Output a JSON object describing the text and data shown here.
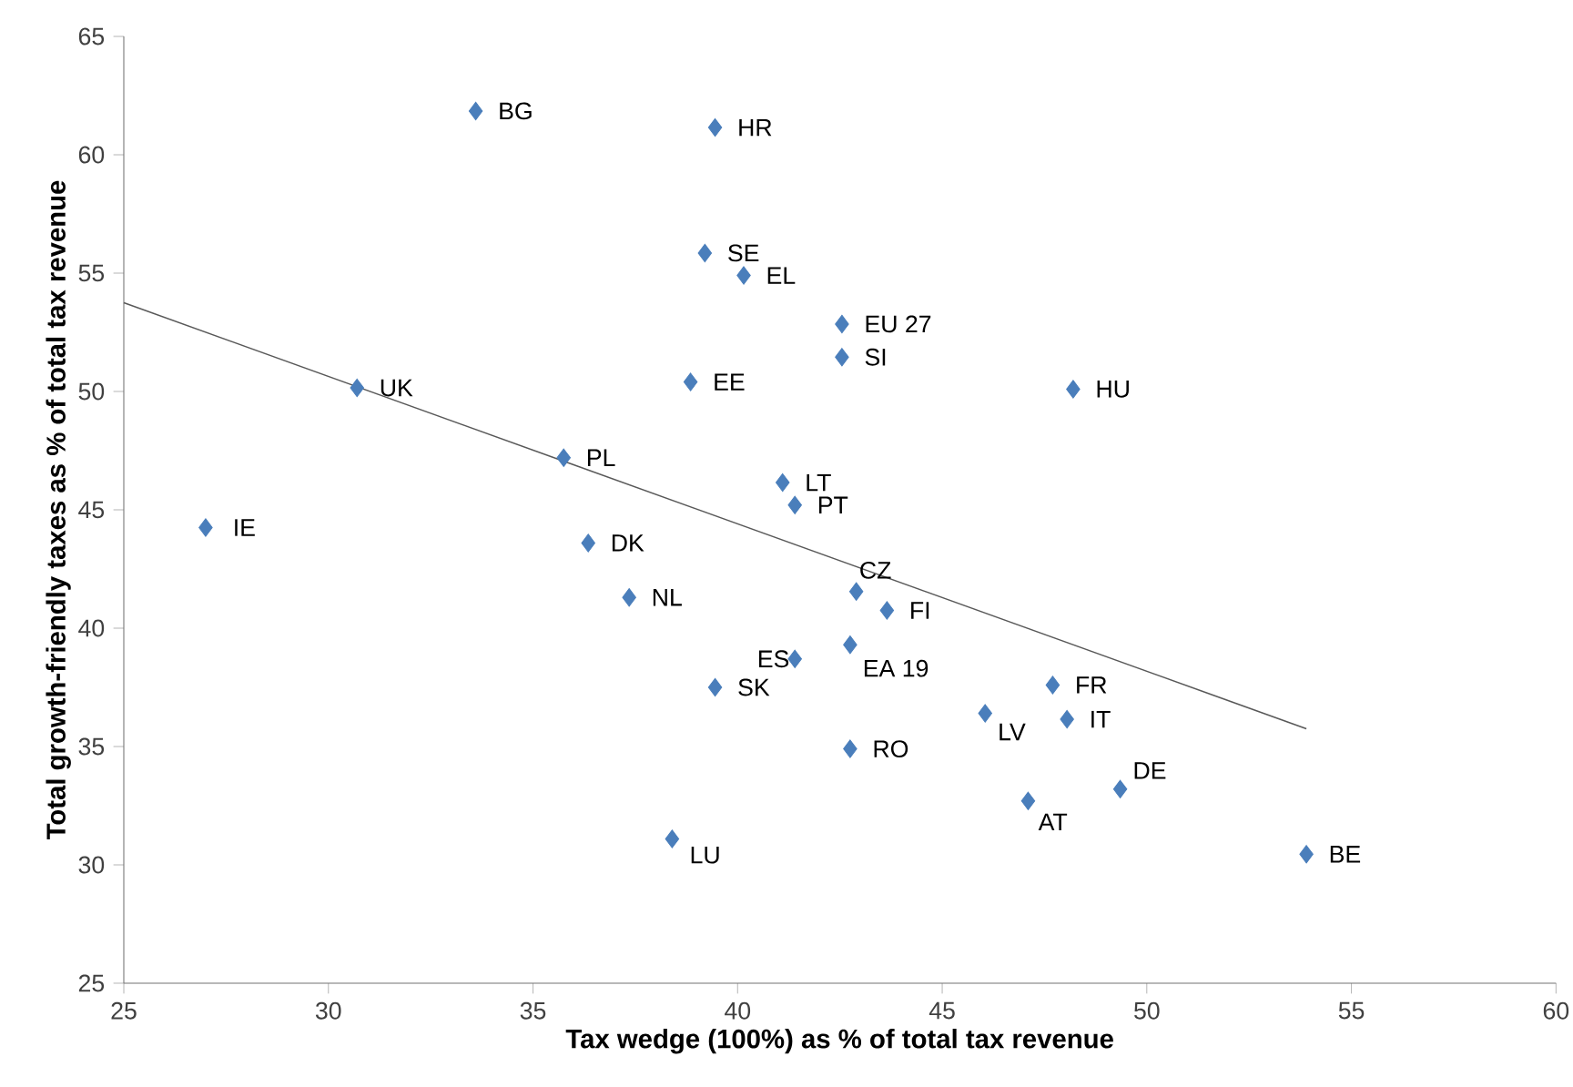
{
  "chart_data": {
    "type": "scatter",
    "xlabel": "Tax wedge (100%) as % of total tax revenue",
    "ylabel": "Total growth-friendly taxes as % of total tax revenue",
    "xlim": [
      25,
      60
    ],
    "ylim": [
      25,
      65
    ],
    "xticks": [
      25,
      30,
      35,
      40,
      45,
      50,
      55,
      60
    ],
    "yticks": [
      25,
      30,
      35,
      40,
      45,
      50,
      55,
      60,
      65
    ],
    "grid": false,
    "series": [
      {
        "marker": "diamond",
        "color": "#4a7ebb",
        "x": [
          33.6,
          39.45,
          39.2,
          40.15,
          42.55,
          42.55,
          48.2,
          30.7,
          38.85,
          35.75,
          41.1,
          41.4,
          27.0,
          36.35,
          42.9,
          37.35,
          43.65,
          42.75,
          41.4,
          39.45,
          47.7,
          46.05,
          48.05,
          42.75,
          49.35,
          47.1,
          38.4,
          53.9
        ],
        "values": [
          61.85,
          61.15,
          55.85,
          54.9,
          52.85,
          51.45,
          50.1,
          50.15,
          50.4,
          47.2,
          46.15,
          45.2,
          44.25,
          43.6,
          41.55,
          41.3,
          40.75,
          39.3,
          38.7,
          37.5,
          37.6,
          36.4,
          36.15,
          34.9,
          33.2,
          32.7,
          31.1,
          30.45
        ]
      },
      {
        "type": "line",
        "color": "#595959",
        "x": [
          25,
          53.9
        ],
        "values": [
          53.75,
          35.75
        ]
      }
    ],
    "annotations": [
      {
        "text": "BG",
        "x": 33.6,
        "y": 61.85
      },
      {
        "text": "HR",
        "x": 39.45,
        "y": 61.15
      },
      {
        "text": "SE",
        "x": 39.2,
        "y": 55.85
      },
      {
        "text": "EL",
        "x": 40.15,
        "y": 54.9
      },
      {
        "text": "EU 27",
        "x": 42.55,
        "y": 52.85
      },
      {
        "text": "SI",
        "x": 42.55,
        "y": 51.45
      },
      {
        "text": "HU",
        "x": 48.2,
        "y": 50.1
      },
      {
        "text": "UK",
        "x": 30.7,
        "y": 50.15
      },
      {
        "text": "EE",
        "x": 38.85,
        "y": 50.4
      },
      {
        "text": "PL",
        "x": 35.75,
        "y": 47.2
      },
      {
        "text": "LT",
        "x": 41.1,
        "y": 46.15
      },
      {
        "text": "PT",
        "x": 41.4,
        "y": 45.2
      },
      {
        "text": "IE",
        "x": 27.0,
        "y": 44.25
      },
      {
        "text": "DK",
        "x": 36.35,
        "y": 43.6
      },
      {
        "text": "CZ",
        "x": 42.9,
        "y": 41.55
      },
      {
        "text": "NL",
        "x": 37.35,
        "y": 41.3
      },
      {
        "text": "FI",
        "x": 43.65,
        "y": 40.75
      },
      {
        "text": "EA 19",
        "x": 42.75,
        "y": 39.3
      },
      {
        "text": "ES",
        "x": 41.4,
        "y": 38.7
      },
      {
        "text": "SK",
        "x": 39.45,
        "y": 37.5
      },
      {
        "text": "FR",
        "x": 47.7,
        "y": 37.6
      },
      {
        "text": "LV",
        "x": 46.05,
        "y": 36.4
      },
      {
        "text": "IT",
        "x": 48.05,
        "y": 36.15
      },
      {
        "text": "RO",
        "x": 42.75,
        "y": 34.9
      },
      {
        "text": "DE",
        "x": 49.35,
        "y": 33.2
      },
      {
        "text": "AT",
        "x": 47.1,
        "y": 32.7
      },
      {
        "text": "LU",
        "x": 38.4,
        "y": 31.1
      },
      {
        "text": "BE",
        "x": 53.9,
        "y": 30.45
      }
    ]
  }
}
